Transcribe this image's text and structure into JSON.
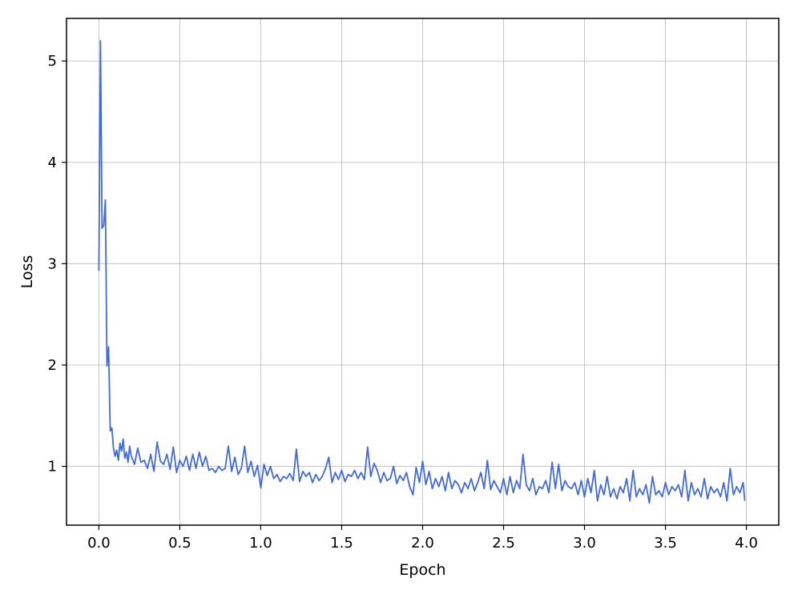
{
  "chart_data": {
    "type": "line",
    "title": "",
    "xlabel": "Epoch",
    "ylabel": "Loss",
    "xlim": [
      -0.2,
      4.2
    ],
    "ylim": [
      0.42,
      5.42
    ],
    "grid": true,
    "line_color": "#4169e1",
    "xticks": [
      "0.0",
      "0.5",
      "1.0",
      "1.5",
      "2.0",
      "2.5",
      "3.0",
      "3.5",
      "4.0"
    ],
    "yticks": [
      "1",
      "2",
      "3",
      "4",
      "5"
    ],
    "series": [
      {
        "x": [
          0.0,
          0.01,
          0.02,
          0.03,
          0.04,
          0.05,
          0.06,
          0.07,
          0.08,
          0.09,
          0.1,
          0.11,
          0.12,
          0.13,
          0.14,
          0.15,
          0.16,
          0.17,
          0.18,
          0.19,
          0.2,
          0.22,
          0.24,
          0.26,
          0.28,
          0.3,
          0.32,
          0.34,
          0.36,
          0.38,
          0.4,
          0.42,
          0.44,
          0.46,
          0.48,
          0.5,
          0.52,
          0.54,
          0.56,
          0.58,
          0.6,
          0.62,
          0.64,
          0.66,
          0.68,
          0.7,
          0.72,
          0.74,
          0.76,
          0.78,
          0.8,
          0.82,
          0.84,
          0.86,
          0.88,
          0.9,
          0.92,
          0.94,
          0.96,
          0.98,
          1.0,
          1.02,
          1.04,
          1.06,
          1.08,
          1.1,
          1.12,
          1.14,
          1.16,
          1.18,
          1.2,
          1.22,
          1.24,
          1.26,
          1.28,
          1.3,
          1.32,
          1.34,
          1.36,
          1.38,
          1.4,
          1.42,
          1.44,
          1.46,
          1.48,
          1.5,
          1.52,
          1.54,
          1.56,
          1.58,
          1.6,
          1.62,
          1.64,
          1.66,
          1.68,
          1.7,
          1.72,
          1.74,
          1.76,
          1.78,
          1.8,
          1.82,
          1.84,
          1.86,
          1.88,
          1.9,
          1.92,
          1.94,
          1.96,
          1.98,
          2.0,
          2.02,
          2.04,
          2.06,
          2.08,
          2.1,
          2.12,
          2.14,
          2.16,
          2.18,
          2.2,
          2.22,
          2.24,
          2.26,
          2.28,
          2.3,
          2.32,
          2.34,
          2.36,
          2.38,
          2.4,
          2.42,
          2.44,
          2.46,
          2.48,
          2.5,
          2.52,
          2.54,
          2.56,
          2.58,
          2.6,
          2.62,
          2.64,
          2.66,
          2.68,
          2.7,
          2.72,
          2.74,
          2.76,
          2.78,
          2.8,
          2.82,
          2.84,
          2.86,
          2.88,
          2.9,
          2.92,
          2.94,
          2.96,
          2.98,
          3.0,
          3.02,
          3.04,
          3.06,
          3.08,
          3.1,
          3.12,
          3.14,
          3.16,
          3.18,
          3.2,
          3.22,
          3.24,
          3.26,
          3.28,
          3.3,
          3.32,
          3.34,
          3.36,
          3.38,
          3.4,
          3.42,
          3.44,
          3.46,
          3.48,
          3.5,
          3.52,
          3.54,
          3.56,
          3.58,
          3.6,
          3.62,
          3.64,
          3.66,
          3.68,
          3.7,
          3.72,
          3.74,
          3.76,
          3.78,
          3.8,
          3.82,
          3.84,
          3.86,
          3.88,
          3.9,
          3.92,
          3.94,
          3.96,
          3.98,
          3.99
        ],
        "values": [
          2.93,
          5.2,
          3.35,
          3.38,
          3.63,
          1.99,
          2.18,
          1.35,
          1.38,
          1.18,
          1.1,
          1.16,
          1.06,
          1.23,
          1.15,
          1.27,
          1.08,
          1.14,
          1.04,
          1.2,
          1.1,
          1.02,
          1.18,
          1.04,
          1.06,
          0.98,
          1.12,
          0.95,
          1.24,
          1.05,
          1.02,
          1.12,
          0.97,
          1.19,
          0.94,
          1.06,
          1.0,
          1.1,
          0.96,
          1.12,
          0.98,
          1.14,
          1.0,
          1.1,
          0.96,
          0.98,
          0.94,
          1.0,
          0.96,
          0.98,
          1.2,
          0.95,
          1.09,
          0.92,
          0.98,
          1.2,
          0.94,
          1.05,
          0.9,
          1.01,
          0.79,
          1.02,
          0.91,
          1.0,
          0.88,
          0.92,
          0.85,
          0.9,
          0.88,
          0.93,
          0.86,
          1.17,
          0.85,
          0.95,
          0.9,
          0.94,
          0.84,
          0.92,
          0.86,
          0.9,
          0.98,
          1.09,
          0.84,
          0.94,
          0.87,
          0.96,
          0.85,
          0.92,
          0.9,
          0.96,
          0.88,
          0.94,
          0.87,
          1.19,
          0.9,
          1.03,
          0.96,
          0.84,
          0.94,
          0.86,
          0.88,
          1.0,
          0.83,
          0.91,
          0.86,
          0.94,
          0.8,
          0.72,
          0.99,
          0.84,
          1.05,
          0.82,
          0.95,
          0.78,
          0.88,
          0.8,
          0.9,
          0.76,
          0.94,
          0.78,
          0.86,
          0.82,
          0.74,
          0.84,
          0.78,
          0.88,
          0.76,
          0.84,
          0.94,
          0.78,
          1.06,
          0.77,
          0.86,
          0.8,
          0.74,
          0.88,
          0.72,
          0.9,
          0.74,
          0.86,
          0.78,
          1.12,
          0.82,
          0.76,
          0.88,
          0.72,
          0.8,
          0.78,
          0.86,
          0.74,
          1.04,
          0.78,
          1.02,
          0.76,
          0.86,
          0.8,
          0.78,
          0.84,
          0.72,
          0.86,
          0.7,
          0.88,
          0.74,
          0.96,
          0.66,
          0.82,
          0.72,
          0.9,
          0.7,
          0.78,
          0.68,
          0.8,
          0.74,
          0.88,
          0.66,
          0.96,
          0.7,
          0.78,
          0.72,
          0.82,
          0.64,
          0.9,
          0.72,
          0.76,
          0.7,
          0.84,
          0.72,
          0.8,
          0.76,
          0.82,
          0.7,
          0.96,
          0.66,
          0.84,
          0.72,
          0.78,
          0.7,
          0.88,
          0.68,
          0.8,
          0.74,
          0.78,
          0.7,
          0.84,
          0.66,
          0.98,
          0.72,
          0.8,
          0.74,
          0.84,
          0.66
        ]
      }
    ]
  }
}
